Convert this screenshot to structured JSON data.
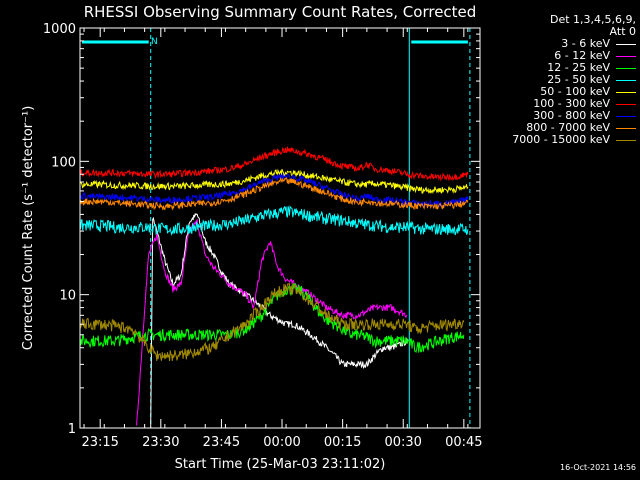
{
  "chart_data": {
    "type": "line",
    "title": "RHESSI Observing Summary Count Rates, Corrected",
    "xlabel": "Start Time (25-Mar-03 23:11:02)",
    "ylabel": "Corrected Count Rate (s⁻¹ detector⁻¹)",
    "y_scale": "log",
    "ylim": [
      1,
      1000
    ],
    "xlim_minutes": [
      23.18,
      23.82
    ],
    "y_ticks": [
      {
        "value": 1,
        "label": "1"
      },
      {
        "value": 10,
        "label": "10"
      },
      {
        "value": 100,
        "label": "100"
      },
      {
        "value": 1000,
        "label": "1000"
      }
    ],
    "x_ticks": [
      {
        "minutes": 4,
        "label": "23:15"
      },
      {
        "minutes": 19,
        "label": "23:30"
      },
      {
        "minutes": 34,
        "label": "23:45"
      },
      {
        "minutes": 49,
        "label": "00:00"
      },
      {
        "minutes": 64,
        "label": "00:15"
      },
      {
        "minutes": 79,
        "label": "00:30"
      },
      {
        "minutes": 94,
        "label": "00:45"
      }
    ],
    "x_range_minutes": [
      -1,
      98
    ],
    "legend_header": [
      "Det 1,3,4,5,6,9,",
      "Att 0"
    ],
    "legend_placement": "top-right outside",
    "annotation": "N",
    "night_intervals_minutes": [
      [
        -1,
        16.5
      ],
      [
        80.5,
        95.5
      ]
    ],
    "series": [
      {
        "name": "3 - 6 keV",
        "color": "#ffffff",
        "points": [
          [
            16.5,
            1.0
          ],
          [
            17.0,
            38
          ],
          [
            18,
            30
          ],
          [
            20,
            18
          ],
          [
            22,
            12
          ],
          [
            24,
            14
          ],
          [
            26,
            35
          ],
          [
            28,
            40
          ],
          [
            30,
            25
          ],
          [
            32,
            20
          ],
          [
            34,
            15
          ],
          [
            36,
            12
          ],
          [
            38,
            11
          ],
          [
            40,
            10
          ],
          [
            42,
            9
          ],
          [
            44,
            8
          ],
          [
            46,
            7
          ],
          [
            48,
            6.5
          ],
          [
            50,
            6
          ],
          [
            52,
            6
          ],
          [
            54,
            5.5
          ],
          [
            56,
            5
          ],
          [
            58,
            4.5
          ],
          [
            60,
            4
          ],
          [
            62,
            3.5
          ],
          [
            64,
            3
          ],
          [
            66,
            3
          ],
          [
            68,
            3
          ],
          [
            70,
            3
          ],
          [
            72,
            3.5
          ],
          [
            74,
            4
          ],
          [
            76,
            4
          ],
          [
            78,
            4.2
          ],
          [
            80,
            4.5
          ]
        ]
      },
      {
        "name": "6 - 12 keV",
        "color": "#ff00ff",
        "points": [
          [
            13,
            1.0
          ],
          [
            15,
            8
          ],
          [
            16,
            20
          ],
          [
            18,
            28
          ],
          [
            20,
            15
          ],
          [
            22,
            11
          ],
          [
            24,
            12
          ],
          [
            26,
            30
          ],
          [
            28,
            35
          ],
          [
            30,
            20
          ],
          [
            32,
            16
          ],
          [
            34,
            14
          ],
          [
            36,
            12
          ],
          [
            38,
            11
          ],
          [
            40,
            10
          ],
          [
            42,
            8
          ],
          [
            44,
            18
          ],
          [
            46,
            25
          ],
          [
            48,
            16
          ],
          [
            50,
            13
          ],
          [
            52,
            12
          ],
          [
            54,
            11
          ],
          [
            56,
            10
          ],
          [
            58,
            9
          ],
          [
            60,
            8
          ],
          [
            62,
            7.5
          ],
          [
            64,
            7
          ],
          [
            66,
            7
          ],
          [
            68,
            7
          ],
          [
            70,
            7.5
          ],
          [
            72,
            8
          ],
          [
            74,
            8
          ],
          [
            76,
            8
          ],
          [
            78,
            7.5
          ],
          [
            80,
            7
          ]
        ]
      },
      {
        "name": "12 - 25 keV",
        "color": "#00ff00",
        "points": [
          [
            -1,
            4.5
          ],
          [
            4,
            4.5
          ],
          [
            8,
            4.5
          ],
          [
            12,
            4.8
          ],
          [
            16,
            5
          ],
          [
            20,
            5
          ],
          [
            24,
            5
          ],
          [
            28,
            5
          ],
          [
            32,
            5
          ],
          [
            36,
            5
          ],
          [
            40,
            5.5
          ],
          [
            44,
            7
          ],
          [
            46,
            8.5
          ],
          [
            48,
            10
          ],
          [
            50,
            11
          ],
          [
            52,
            11
          ],
          [
            54,
            10.5
          ],
          [
            56,
            9
          ],
          [
            58,
            7.5
          ],
          [
            60,
            6.5
          ],
          [
            62,
            6
          ],
          [
            64,
            5.5
          ],
          [
            66,
            5
          ],
          [
            68,
            5
          ],
          [
            70,
            4.8
          ],
          [
            72,
            4.5
          ],
          [
            74,
            4.5
          ],
          [
            76,
            4.5
          ],
          [
            78,
            4.5
          ],
          [
            80,
            4.5
          ],
          [
            82,
            4.0
          ],
          [
            86,
            4.3
          ],
          [
            90,
            4.7
          ],
          [
            94,
            5.0
          ]
        ]
      },
      {
        "name": "25 - 50 keV",
        "color": "#00ffff",
        "points": [
          [
            -1,
            33
          ],
          [
            4,
            33
          ],
          [
            8,
            32
          ],
          [
            12,
            32
          ],
          [
            16,
            32
          ],
          [
            20,
            31
          ],
          [
            24,
            31
          ],
          [
            28,
            32
          ],
          [
            32,
            33
          ],
          [
            36,
            34
          ],
          [
            40,
            36
          ],
          [
            44,
            39
          ],
          [
            48,
            41
          ],
          [
            50,
            42
          ],
          [
            52,
            41
          ],
          [
            56,
            39
          ],
          [
            60,
            37
          ],
          [
            64,
            36
          ],
          [
            68,
            34
          ],
          [
            72,
            33
          ],
          [
            76,
            32
          ],
          [
            80,
            32
          ],
          [
            84,
            31
          ],
          [
            88,
            31
          ],
          [
            92,
            31
          ],
          [
            95,
            31
          ]
        ]
      },
      {
        "name": "50 - 100 keV",
        "color": "#ffff00",
        "points": [
          [
            -1,
            67
          ],
          [
            4,
            67
          ],
          [
            8,
            66
          ],
          [
            12,
            66
          ],
          [
            16,
            65
          ],
          [
            20,
            65
          ],
          [
            24,
            65
          ],
          [
            28,
            66
          ],
          [
            32,
            67
          ],
          [
            36,
            68
          ],
          [
            40,
            72
          ],
          [
            44,
            78
          ],
          [
            48,
            82
          ],
          [
            50,
            83
          ],
          [
            52,
            82
          ],
          [
            56,
            78
          ],
          [
            60,
            74
          ],
          [
            64,
            70
          ],
          [
            68,
            67
          ],
          [
            70,
            67
          ],
          [
            72,
            68
          ],
          [
            76,
            66
          ],
          [
            80,
            63
          ],
          [
            84,
            61
          ],
          [
            88,
            61
          ],
          [
            92,
            62
          ],
          [
            95,
            64
          ]
        ]
      },
      {
        "name": "100 - 300 keV",
        "color": "#ff0000",
        "points": [
          [
            -1,
            82
          ],
          [
            4,
            82
          ],
          [
            8,
            82
          ],
          [
            12,
            81
          ],
          [
            16,
            80
          ],
          [
            20,
            80
          ],
          [
            24,
            81
          ],
          [
            28,
            83
          ],
          [
            32,
            85
          ],
          [
            36,
            88
          ],
          [
            40,
            95
          ],
          [
            44,
            108
          ],
          [
            48,
            118
          ],
          [
            50,
            122
          ],
          [
            52,
            120
          ],
          [
            56,
            112
          ],
          [
            60,
            102
          ],
          [
            64,
            92
          ],
          [
            68,
            88
          ],
          [
            70,
            95
          ],
          [
            72,
            88
          ],
          [
            76,
            85
          ],
          [
            80,
            80
          ],
          [
            84,
            77
          ],
          [
            88,
            76
          ],
          [
            92,
            77
          ],
          [
            95,
            80
          ]
        ]
      },
      {
        "name": "300 - 800 keV",
        "color": "#0000ff",
        "points": [
          [
            -1,
            55
          ],
          [
            4,
            54
          ],
          [
            8,
            54
          ],
          [
            12,
            53
          ],
          [
            16,
            52
          ],
          [
            20,
            51
          ],
          [
            24,
            52
          ],
          [
            28,
            53
          ],
          [
            32,
            54
          ],
          [
            36,
            57
          ],
          [
            40,
            62
          ],
          [
            44,
            70
          ],
          [
            48,
            76
          ],
          [
            50,
            77
          ],
          [
            52,
            76
          ],
          [
            56,
            70
          ],
          [
            60,
            63
          ],
          [
            64,
            56
          ],
          [
            68,
            52
          ],
          [
            70,
            55
          ],
          [
            72,
            52
          ],
          [
            76,
            51
          ],
          [
            80,
            49
          ],
          [
            84,
            48
          ],
          [
            88,
            48
          ],
          [
            92,
            49
          ],
          [
            95,
            52
          ]
        ]
      },
      {
        "name": "800 - 7000 keV",
        "color": "#ff8800",
        "points": [
          [
            -1,
            50
          ],
          [
            4,
            50
          ],
          [
            8,
            49
          ],
          [
            12,
            48
          ],
          [
            16,
            47
          ],
          [
            20,
            46
          ],
          [
            24,
            47
          ],
          [
            28,
            48
          ],
          [
            32,
            49
          ],
          [
            36,
            52
          ],
          [
            40,
            57
          ],
          [
            44,
            64
          ],
          [
            48,
            70
          ],
          [
            50,
            71
          ],
          [
            52,
            70
          ],
          [
            56,
            64
          ],
          [
            60,
            58
          ],
          [
            64,
            52
          ],
          [
            68,
            49
          ],
          [
            70,
            51
          ],
          [
            72,
            49
          ],
          [
            76,
            48
          ],
          [
            80,
            47
          ],
          [
            84,
            46
          ],
          [
            88,
            46
          ],
          [
            92,
            47
          ],
          [
            95,
            49
          ]
        ]
      },
      {
        "name": "7000 - 15000 keV",
        "color": "#a08800",
        "points": [
          [
            -1,
            6
          ],
          [
            4,
            6
          ],
          [
            8,
            5.8
          ],
          [
            12,
            5.5
          ],
          [
            16,
            4
          ],
          [
            18,
            3.5
          ],
          [
            20,
            3.5
          ],
          [
            24,
            3.5
          ],
          [
            28,
            3.8
          ],
          [
            32,
            4
          ],
          [
            36,
            5
          ],
          [
            40,
            6
          ],
          [
            42,
            7
          ],
          [
            44,
            8
          ],
          [
            46,
            9.5
          ],
          [
            48,
            10.5
          ],
          [
            50,
            11
          ],
          [
            52,
            11
          ],
          [
            54,
            10
          ],
          [
            56,
            9
          ],
          [
            58,
            8
          ],
          [
            60,
            7
          ],
          [
            62,
            6.5
          ],
          [
            64,
            6
          ],
          [
            66,
            6
          ],
          [
            68,
            6
          ],
          [
            72,
            6
          ],
          [
            76,
            6
          ],
          [
            80,
            6
          ],
          [
            82,
            5.5
          ],
          [
            86,
            5.8
          ],
          [
            90,
            6
          ],
          [
            94,
            6.2
          ]
        ]
      }
    ]
  },
  "footer": {
    "timestamp": "16-Oct-2021 14:56"
  }
}
